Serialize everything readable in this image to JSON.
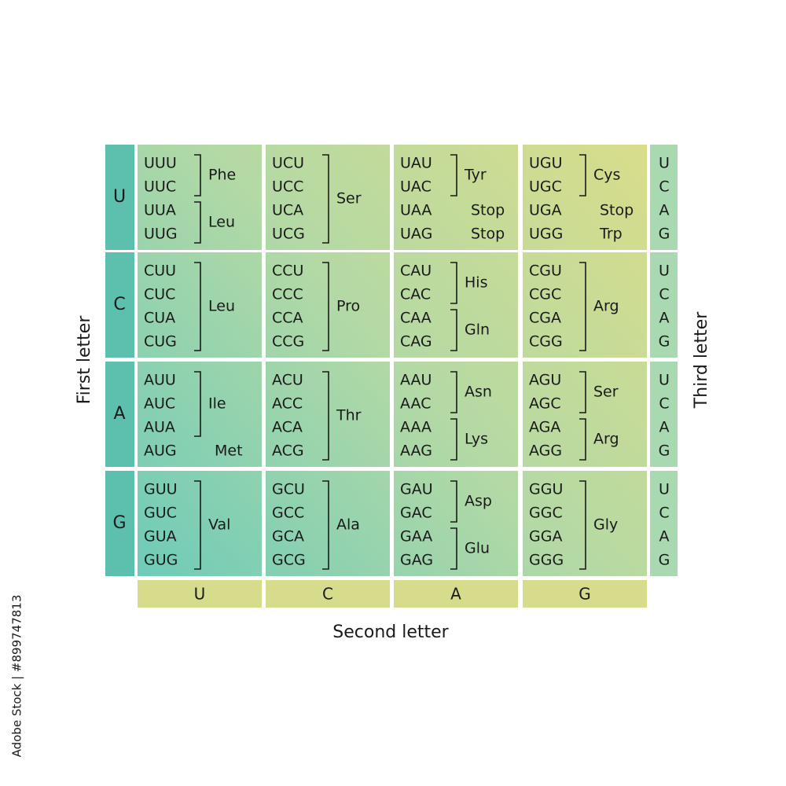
{
  "title_first": "First letter",
  "title_second": "Second letter",
  "title_third": "Third letter",
  "credit": "Adobe Stock | #899747813",
  "first_letters": [
    "U",
    "C",
    "A",
    "G"
  ],
  "second_letters": [
    "U",
    "C",
    "A",
    "G"
  ],
  "third_letters": [
    [
      "U",
      "C",
      "A",
      "G"
    ],
    [
      "U",
      "C",
      "A",
      "G"
    ],
    [
      "U",
      "C",
      "A",
      "G"
    ],
    [
      "U",
      "C",
      "A",
      "G"
    ]
  ],
  "cells": [
    [
      {
        "groups": [
          {
            "codons": [
              "UUU",
              "UUC"
            ],
            "label": "Phe"
          },
          {
            "codons": [
              "UUA",
              "UUG"
            ],
            "label": "Leu"
          }
        ]
      },
      {
        "groups": [
          {
            "codons": [
              "UCU",
              "UCC",
              "UCA",
              "UCG"
            ],
            "label": "Ser"
          }
        ]
      },
      {
        "groups": [
          {
            "codons": [
              "UAU",
              "UAC"
            ],
            "label": "Tyr"
          },
          {
            "codons": [
              "UAA"
            ],
            "label": "Stop"
          },
          {
            "codons": [
              "UAG"
            ],
            "label": "Stop"
          }
        ]
      },
      {
        "groups": [
          {
            "codons": [
              "UGU",
              "UGC"
            ],
            "label": "Cys"
          },
          {
            "codons": [
              "UGA"
            ],
            "label": "Stop"
          },
          {
            "codons": [
              "UGG"
            ],
            "label": "Trp"
          }
        ]
      }
    ],
    [
      {
        "groups": [
          {
            "codons": [
              "CUU",
              "CUC",
              "CUA",
              "CUG"
            ],
            "label": "Leu"
          }
        ]
      },
      {
        "groups": [
          {
            "codons": [
              "CCU",
              "CCC",
              "CCA",
              "CCG"
            ],
            "label": "Pro"
          }
        ]
      },
      {
        "groups": [
          {
            "codons": [
              "CAU",
              "CAC"
            ],
            "label": "His"
          },
          {
            "codons": [
              "CAA",
              "CAG"
            ],
            "label": "Gln"
          }
        ]
      },
      {
        "groups": [
          {
            "codons": [
              "CGU",
              "CGC",
              "CGA",
              "CGG"
            ],
            "label": "Arg"
          }
        ]
      }
    ],
    [
      {
        "groups": [
          {
            "codons": [
              "AUU",
              "AUC",
              "AUA"
            ],
            "label": "Ile"
          },
          {
            "codons": [
              "AUG"
            ],
            "label": "Met",
            "color": "#e2393f"
          }
        ]
      },
      {
        "groups": [
          {
            "codons": [
              "ACU",
              "ACC",
              "ACA",
              "ACG"
            ],
            "label": "Thr"
          }
        ]
      },
      {
        "groups": [
          {
            "codons": [
              "AAU",
              "AAC"
            ],
            "label": "Asn"
          },
          {
            "codons": [
              "AAA",
              "AAG"
            ],
            "label": "Lys"
          }
        ]
      },
      {
        "groups": [
          {
            "codons": [
              "AGU",
              "AGC"
            ],
            "label": "Ser"
          },
          {
            "codons": [
              "AGA",
              "AGG"
            ],
            "label": "Arg"
          }
        ]
      }
    ],
    [
      {
        "groups": [
          {
            "codons": [
              "GUU",
              "GUC",
              "GUA",
              "GUG"
            ],
            "label": "Val"
          }
        ]
      },
      {
        "groups": [
          {
            "codons": [
              "GCU",
              "GCC",
              "GCA",
              "GCG"
            ],
            "label": "Ala"
          }
        ]
      },
      {
        "groups": [
          {
            "codons": [
              "GAU",
              "GAC"
            ],
            "label": "Asp"
          },
          {
            "codons": [
              "GAA",
              "GAG"
            ],
            "label": "Glu"
          }
        ]
      },
      {
        "groups": [
          {
            "codons": [
              "GGU",
              "GGC",
              "GGA",
              "GGG"
            ],
            "label": "Gly"
          }
        ]
      }
    ]
  ]
}
